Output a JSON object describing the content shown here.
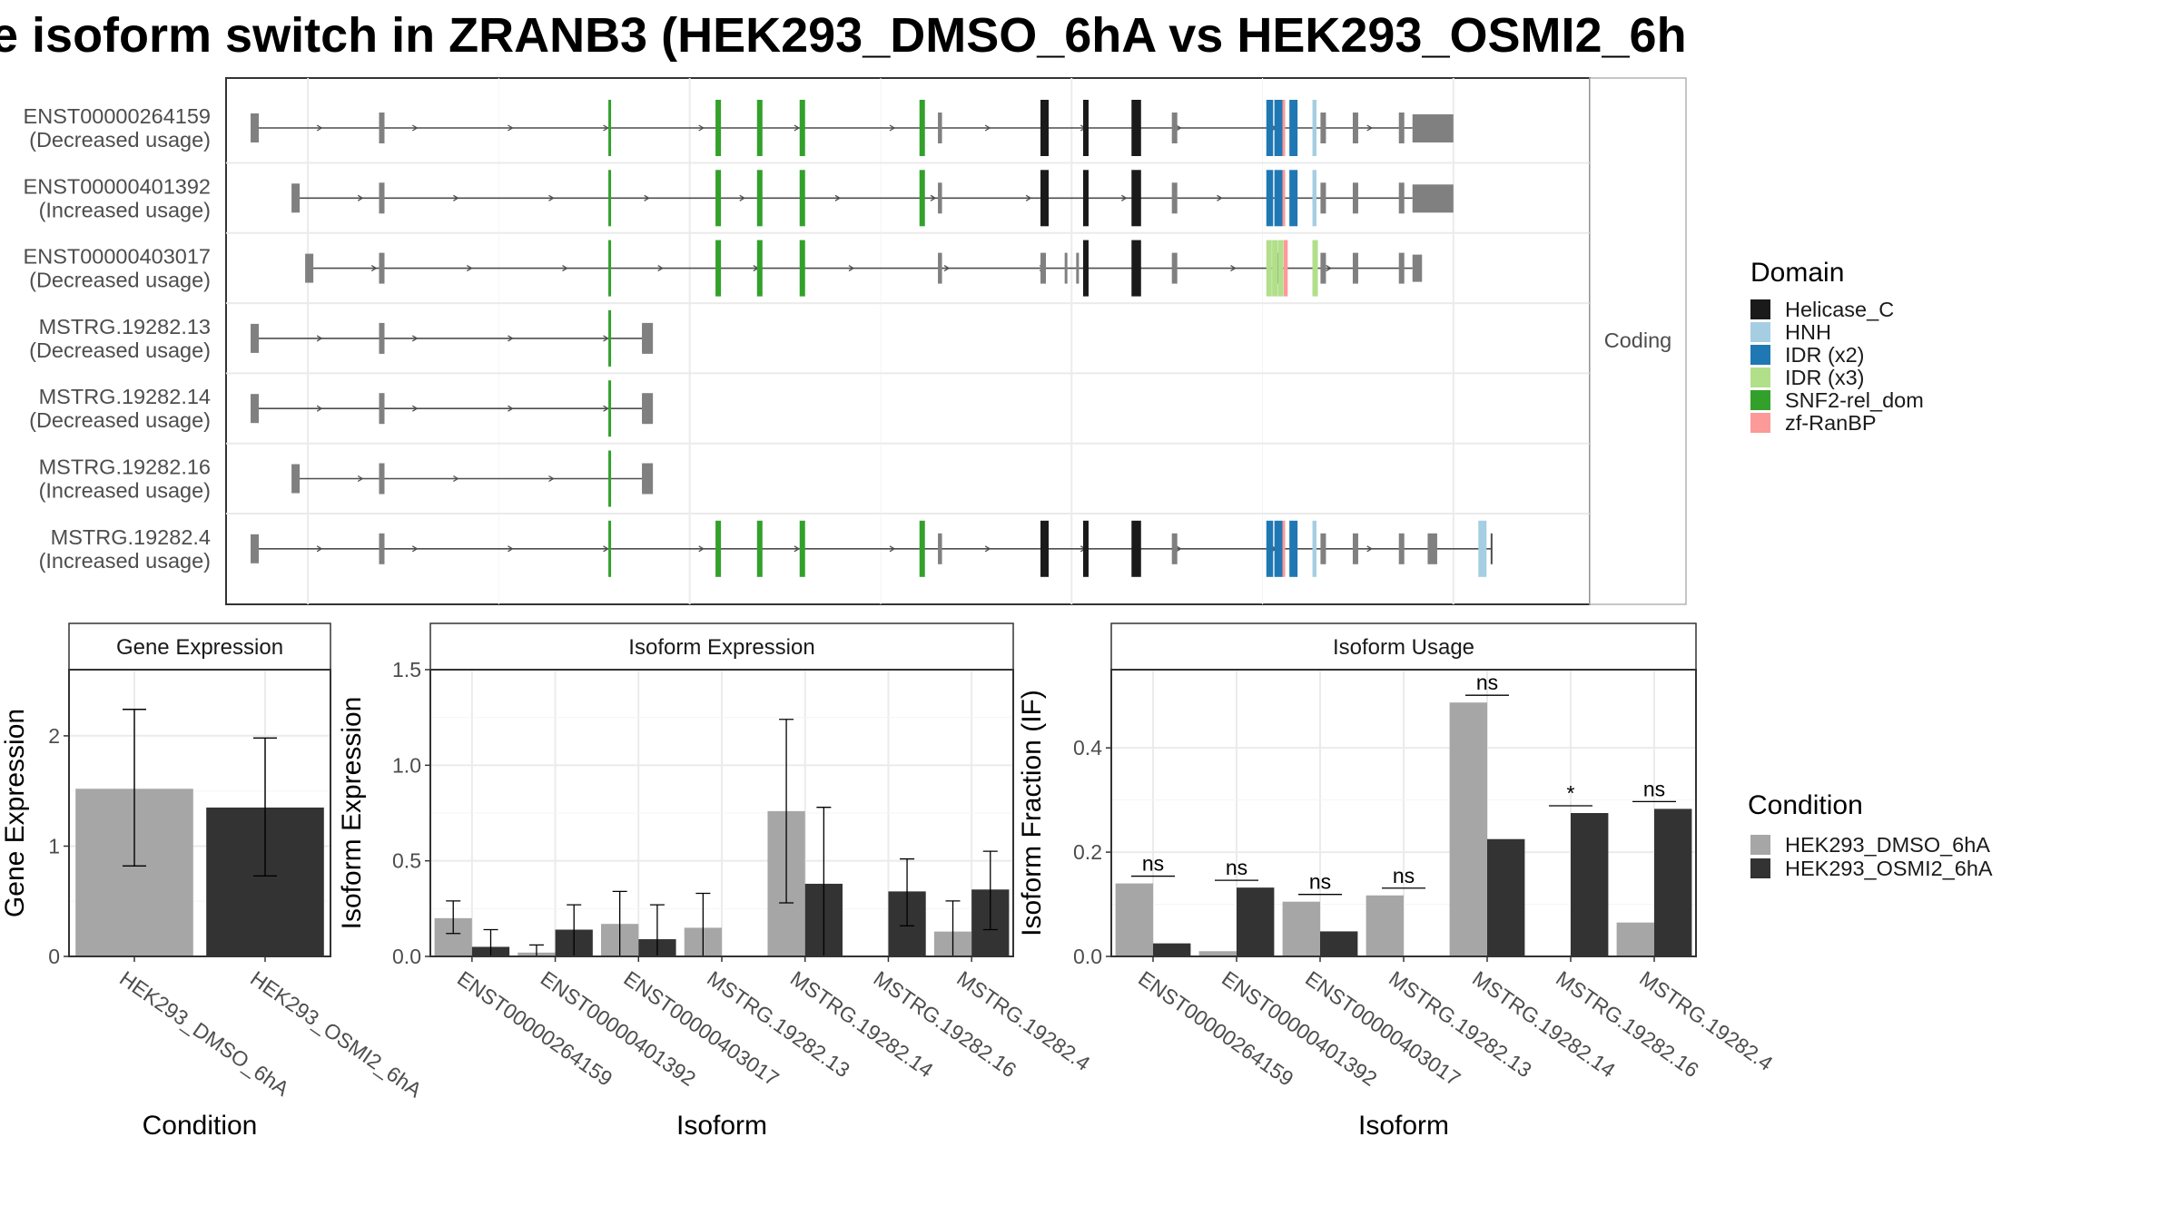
{
  "title": "e isoform switch in ZRANB3 (HEK293_DMSO_6hA vs HEK293_OSMI2_6h",
  "colors": {
    "Helicase_C": "#1a1a1a",
    "HNH": "#a6cee3",
    "IDR (x2)": "#1f78b4",
    "IDR (x3)": "#b2df8a",
    "SNF2-rel_dom": "#33a02c",
    "zf-RanBP": "#fb9a99",
    "exon": "#808080",
    "HEK293_DMSO_6hA": "#a6a6a6",
    "HEK293_OSMI2_6hA": "#333333"
  },
  "structure": {
    "facet_label": "Coding",
    "transcripts": [
      {
        "id": "ENST00000264159",
        "usage": "(Decreased usage)",
        "tss": 0.02
      },
      {
        "id": "ENST00000401392",
        "usage": "(Increased usage)",
        "tss": 0.05
      },
      {
        "id": "ENST00000403017",
        "usage": "(Decreased usage)",
        "tss": 0.06
      },
      {
        "id": "MSTRG.19282.13",
        "usage": "(Decreased usage)",
        "tss": 0.02
      },
      {
        "id": "MSTRG.19282.14",
        "usage": "(Decreased usage)",
        "tss": 0.02
      },
      {
        "id": "MSTRG.19282.16",
        "usage": "(Increased usage)",
        "tss": 0.05
      },
      {
        "id": "MSTRG.19282.4",
        "usage": "(Increased usage)",
        "tss": 0.02
      }
    ]
  },
  "legend_domain": {
    "title": "Domain",
    "items": [
      "Helicase_C",
      "HNH",
      "IDR (x2)",
      "IDR (x3)",
      "SNF2-rel_dom",
      "zf-RanBP"
    ]
  },
  "legend_condition": {
    "title": "Condition",
    "items": [
      "HEK293_DMSO_6hA",
      "HEK293_OSMI2_6hA"
    ]
  },
  "chart_data": [
    {
      "type": "bar",
      "title": "Gene Expression",
      "xlabel": "Condition",
      "ylabel": "Gene Expression",
      "ylim": [
        0,
        2.6
      ],
      "yticks": [
        0,
        1,
        2
      ],
      "categories": [
        "HEK293_DMSO_6hA",
        "HEK293_OSMI2_6hA"
      ],
      "values": [
        1.52,
        1.35
      ],
      "error_low": [
        0.82,
        0.73
      ],
      "error_high": [
        2.24,
        1.98
      ]
    },
    {
      "type": "bar",
      "title": "Isoform Expression",
      "xlabel": "Isoform",
      "ylabel": "Isoform Expression",
      "ylim": [
        0,
        1.5
      ],
      "yticks": [
        0.0,
        0.5,
        1.0,
        1.5
      ],
      "categories": [
        "ENST00000264159",
        "ENST00000401392",
        "ENST00000403017",
        "MSTRG.19282.13",
        "MSTRG.19282.14",
        "MSTRG.19282.16",
        "MSTRG.19282.4"
      ],
      "series": [
        {
          "name": "HEK293_DMSO_6hA",
          "values": [
            0.2,
            0.02,
            0.17,
            0.15,
            0.76,
            0.0,
            0.13
          ],
          "error_low": [
            0.12,
            0.0,
            0.0,
            0.0,
            0.28,
            0.0,
            0.0
          ],
          "error_high": [
            0.29,
            0.06,
            0.34,
            0.33,
            1.24,
            0.0,
            0.29
          ]
        },
        {
          "name": "HEK293_OSMI2_6hA",
          "values": [
            0.05,
            0.14,
            0.09,
            0.0,
            0.38,
            0.34,
            0.35
          ],
          "error_low": [
            0.0,
            0.0,
            0.0,
            0.0,
            0.0,
            0.16,
            0.14
          ],
          "error_high": [
            0.14,
            0.27,
            0.27,
            0.0,
            0.78,
            0.51,
            0.55
          ]
        }
      ]
    },
    {
      "type": "bar",
      "title": "Isoform Usage",
      "xlabel": "Isoform",
      "ylabel": "Isoform Fraction (IF)",
      "ylim": [
        0,
        0.55
      ],
      "yticks": [
        0.0,
        0.2,
        0.4
      ],
      "categories": [
        "ENST00000264159",
        "ENST00000401392",
        "ENST00000403017",
        "MSTRG.19282.13",
        "MSTRG.19282.14",
        "MSTRG.19282.16",
        "MSTRG.19282.4"
      ],
      "series": [
        {
          "name": "HEK293_DMSO_6hA",
          "values": [
            0.14,
            0.01,
            0.105,
            0.117,
            0.487,
            0.0,
            0.065
          ]
        },
        {
          "name": "HEK293_OSMI2_6hA",
          "values": [
            0.025,
            0.132,
            0.048,
            0.0,
            0.225,
            0.275,
            0.283
          ]
        }
      ],
      "significance": [
        "ns",
        "ns",
        "ns",
        "ns",
        "ns",
        "*",
        "ns"
      ]
    }
  ]
}
